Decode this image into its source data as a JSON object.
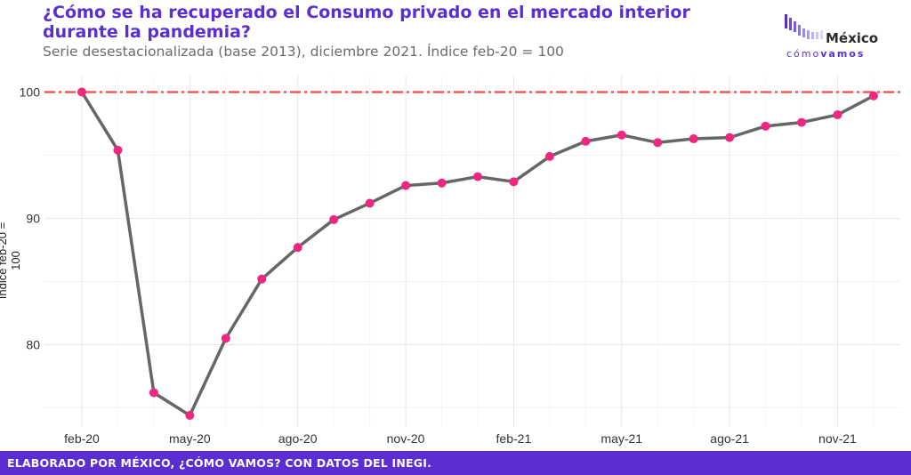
{
  "header": {
    "title": "¿Cómo se ha recuperado el Consumo privado en el mercado interior durante la pandemia?",
    "subtitle": "Serie desestacionalizada (base 2013), diciembre 2021. Índice feb-20 = 100"
  },
  "logo": {
    "word": "México",
    "sub_light": "cómo",
    "sub_bold": "vamos"
  },
  "footer": {
    "text": "ELABORADO POR MÉXICO, ¿CÓMO VAMOS? CON DATOS DEL INEGI."
  },
  "chart_data": {
    "type": "line",
    "title": "¿Cómo se ha recuperado el Consumo privado en el mercado interior durante la pandemia?",
    "subtitle": "Serie desestacionalizada (base 2013), diciembre 2021. Índice feb-20 = 100",
    "ylabel": "Índice feb-20 = 100",
    "xlabel": "",
    "ylim": [
      73.5,
      101.5
    ],
    "yticks": [
      80,
      90,
      100
    ],
    "reference_line": {
      "y": 100,
      "style": "dash-dot",
      "color": "#ee4b4b"
    },
    "x_tick_labels": [
      "feb-20",
      "may-20",
      "ago-20",
      "nov-20",
      "feb-21",
      "may-21",
      "ago-21",
      "nov-21"
    ],
    "x": [
      "feb-20",
      "mar-20",
      "abr-20",
      "may-20",
      "jun-20",
      "jul-20",
      "ago-20",
      "sep-20",
      "oct-20",
      "nov-20",
      "dic-20",
      "ene-21",
      "feb-21",
      "mar-21",
      "abr-21",
      "may-21",
      "jun-21",
      "jul-21",
      "ago-21",
      "sep-21",
      "oct-21",
      "nov-21",
      "dic-21"
    ],
    "series": [
      {
        "values": [
          100.0,
          95.4,
          76.2,
          74.4,
          80.5,
          85.2,
          87.7,
          89.9,
          91.2,
          92.6,
          92.8,
          93.3,
          92.9,
          94.9,
          96.1,
          96.6,
          96.0,
          96.3,
          96.4,
          97.3,
          97.6,
          98.2,
          99.7
        ],
        "line_color": "#666666",
        "marker_color": "#f0267f"
      }
    ],
    "grid": true
  }
}
